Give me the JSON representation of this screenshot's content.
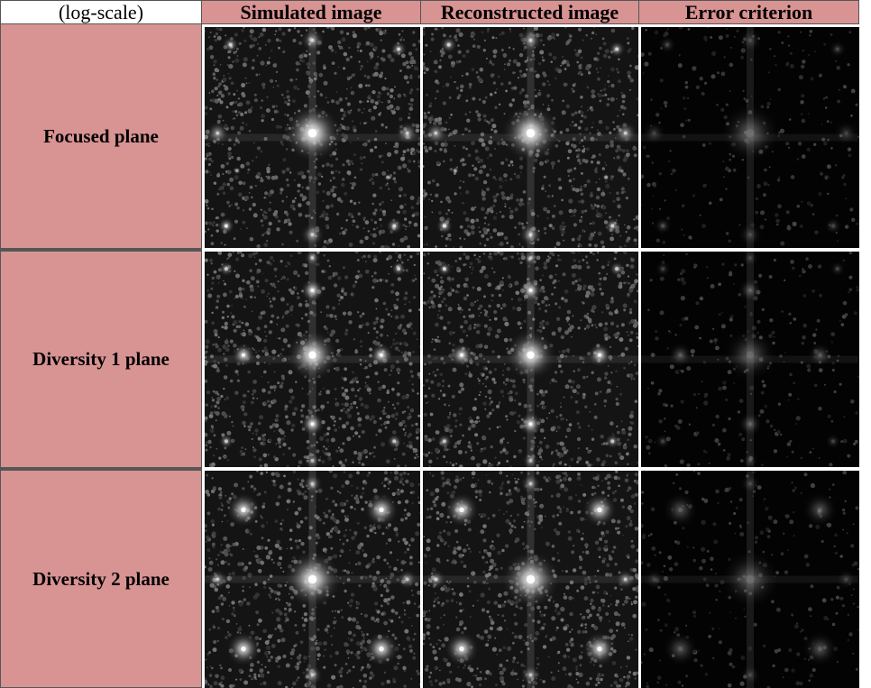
{
  "corner_label": "(log-scale)",
  "columns": [
    "Simulated image",
    "Reconstructed image",
    "Error criterion"
  ],
  "rows": [
    "Focused plane",
    "Diversity 1 plane",
    "Diversity 2 plane"
  ]
}
